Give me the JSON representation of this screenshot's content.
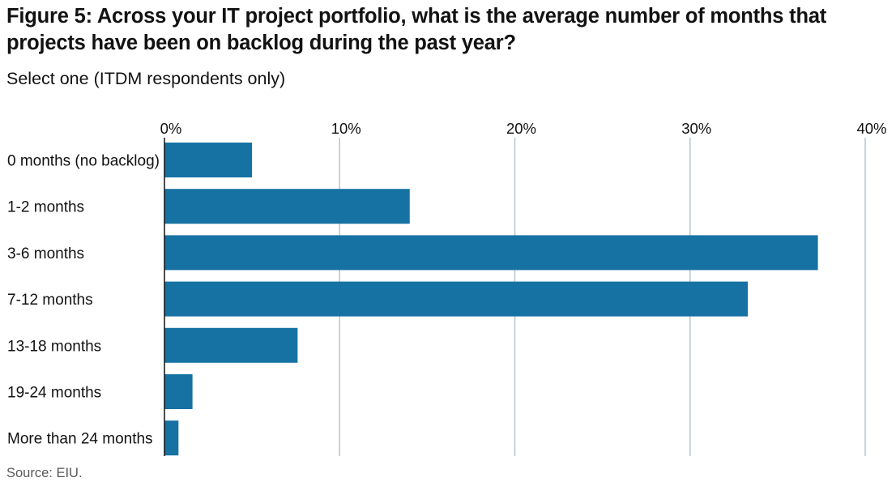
{
  "title": "Figure 5: Across your IT project portfolio, what is the average number of months that projects have been on backlog during the past year?",
  "subtitle": "Select one (ITDM respondents only)",
  "source": "Source: EIU.",
  "colors": {
    "bar": "#1672a3",
    "gridline": "#b7c6cf",
    "axis": "#121212"
  },
  "chart_data": {
    "type": "bar",
    "orientation": "horizontal",
    "title": "Figure 5: Across your IT project portfolio, what is the average number of months that projects have been on backlog during the past year?",
    "subtitle": "Select one (ITDM respondents only)",
    "xlabel": "",
    "ylabel": "",
    "categories": [
      "0 months (no backlog)",
      "1-2 months",
      "3-6 months",
      "7-12 months",
      "13-18 months",
      "19-24 months",
      "More than 24 months"
    ],
    "values": [
      5.0,
      14.0,
      37.3,
      33.3,
      7.6,
      1.6,
      0.8
    ],
    "unit": "%",
    "xlim": [
      0,
      40
    ],
    "xticks": [
      0,
      10,
      20,
      30,
      40
    ],
    "xtick_labels": [
      "0%",
      "10%",
      "20%",
      "30%",
      "40%"
    ],
    "tick_position": "top",
    "grid": true,
    "legend": "none",
    "source": "Source: EIU."
  }
}
